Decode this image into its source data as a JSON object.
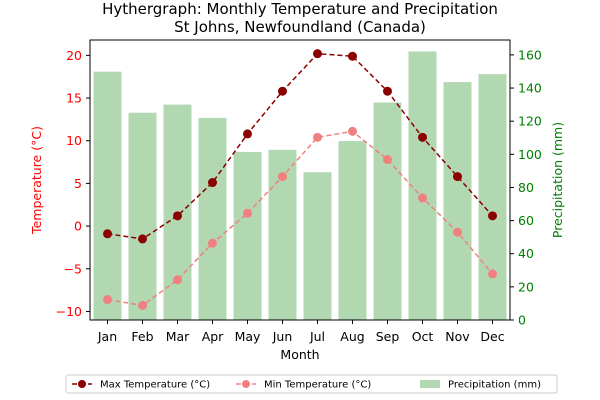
{
  "chart_data": {
    "type": "bar+line",
    "title": [
      "Hythergraph: Monthly Temperature and Precipitation",
      "St Johns, Newfoundland (Canada)"
    ],
    "xlabel": "Month",
    "y_left_label": "Temperature (°C)",
    "y_right_label": "Precipitation (mm)",
    "categories": [
      "Jan",
      "Feb",
      "Mar",
      "Apr",
      "May",
      "Jun",
      "Jul",
      "Aug",
      "Sep",
      "Oct",
      "Nov",
      "Dec"
    ],
    "y_left_lim": [
      -11,
      21.8
    ],
    "y_left_ticks": [
      -10,
      -5,
      0,
      5,
      10,
      15,
      20
    ],
    "y_right_lim": [
      0,
      169
    ],
    "y_right_ticks": [
      0,
      20,
      40,
      60,
      80,
      100,
      120,
      140,
      160
    ],
    "series": [
      {
        "name": "Max Temperature (°C)",
        "type": "line",
        "axis": "left",
        "color": "#8b0000",
        "style": "dashed",
        "marker": "circle",
        "values": [
          -0.9,
          -1.5,
          1.2,
          5.1,
          10.8,
          15.8,
          20.2,
          19.9,
          15.8,
          10.4,
          5.8,
          1.2
        ]
      },
      {
        "name": "Min Temperature (°C)",
        "type": "line",
        "axis": "left",
        "color": "#f08080",
        "style": "dashed",
        "marker": "circle",
        "values": [
          -8.6,
          -9.3,
          -6.3,
          -2.0,
          1.5,
          5.8,
          10.4,
          11.1,
          7.8,
          3.3,
          -0.7,
          -5.6
        ]
      },
      {
        "name": "Precipitation (mm)",
        "type": "bar",
        "axis": "right",
        "color": "#b2d8b2",
        "values": [
          149.9,
          125.1,
          130.0,
          122.0,
          101.4,
          102.7,
          89.2,
          108.0,
          131.3,
          162.1,
          143.6,
          148.4
        ]
      }
    ],
    "legend_position": "bottom-center",
    "left_axis_color": "#ff0000",
    "right_axis_color": "#008000"
  }
}
